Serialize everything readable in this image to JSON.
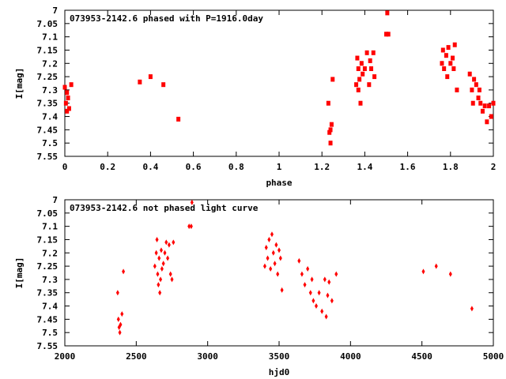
{
  "chart_data": [
    {
      "type": "scatter",
      "title": "073953-2142.6 phased with P=1916.0day",
      "xlabel": "phase",
      "ylabel": "I[mag]",
      "xlim": [
        0,
        2
      ],
      "ylim": [
        7.55,
        7
      ],
      "y_inverted": true,
      "xticks": [
        "0",
        "0.2",
        "0.4",
        "0.6",
        "0.8",
        "1",
        "1.2",
        "1.4",
        "1.6",
        "1.8",
        "2"
      ],
      "yticks": [
        "7",
        "7.05",
        "7.1",
        "7.15",
        "7.2",
        "7.25",
        "7.3",
        "7.35",
        "7.4",
        "7.45",
        "7.5",
        "7.55"
      ],
      "grid": false,
      "marker_color": "#ff0000",
      "series": [
        {
          "x": [
            0.0,
            0.005,
            0.01,
            0.01,
            0.015,
            0.02,
            0.03,
            0.35,
            0.4,
            0.46,
            0.53,
            1.23,
            1.235,
            1.24,
            1.24,
            1.245,
            1.25,
            1.36,
            1.365,
            1.37,
            1.37,
            1.375,
            1.38,
            1.385,
            1.39,
            1.4,
            1.41,
            1.42,
            1.425,
            1.43,
            1.44,
            1.445,
            1.5,
            1.505,
            1.51,
            1.76,
            1.765,
            1.77,
            1.78,
            1.785,
            1.79,
            1.8,
            1.81,
            1.815,
            1.82,
            1.83,
            1.89,
            1.9,
            1.905,
            1.91,
            1.92,
            1.93,
            1.935,
            1.94,
            1.95,
            1.96,
            1.97,
            1.98,
            1.99,
            2.0
          ],
          "y": [
            7.29,
            7.35,
            7.31,
            7.38,
            7.33,
            7.37,
            7.28,
            7.27,
            7.25,
            7.28,
            7.41,
            7.35,
            7.46,
            7.5,
            7.45,
            7.43,
            7.26,
            7.28,
            7.18,
            7.22,
            7.3,
            7.26,
            7.35,
            7.2,
            7.24,
            7.22,
            7.16,
            7.28,
            7.19,
            7.22,
            7.16,
            7.25,
            7.09,
            7.01,
            7.09,
            7.2,
            7.15,
            7.22,
            7.17,
            7.25,
            7.14,
            7.2,
            7.18,
            7.22,
            7.13,
            7.3,
            7.24,
            7.3,
            7.35,
            7.26,
            7.28,
            7.33,
            7.3,
            7.35,
            7.38,
            7.36,
            7.42,
            7.36,
            7.4,
            7.35
          ]
        }
      ]
    },
    {
      "type": "scatter",
      "title": "073953-2142.6 not phased light curve",
      "xlabel": "hjd0",
      "ylabel": "I[mag]",
      "xlim": [
        2000,
        5000
      ],
      "ylim": [
        7.55,
        7
      ],
      "y_inverted": true,
      "xticks": [
        "2000",
        "2500",
        "3000",
        "3500",
        "4000",
        "4500",
        "5000"
      ],
      "yticks": [
        "7",
        "7.05",
        "7.1",
        "7.15",
        "7.2",
        "7.25",
        "7.3",
        "7.35",
        "7.4",
        "7.45",
        "7.5",
        "7.55"
      ],
      "grid": false,
      "marker_color": "#ff0000",
      "series": [
        {
          "x": [
            2370,
            2375,
            2380,
            2385,
            2390,
            2400,
            2410,
            2630,
            2640,
            2645,
            2650,
            2655,
            2660,
            2665,
            2670,
            2675,
            2680,
            2690,
            2700,
            2710,
            2720,
            2730,
            2740,
            2750,
            2760,
            2870,
            2885,
            2890,
            3400,
            3410,
            3420,
            3430,
            3440,
            3450,
            3460,
            3470,
            3480,
            3490,
            3500,
            3510,
            3520,
            3640,
            3660,
            3680,
            3700,
            3720,
            3730,
            3740,
            3760,
            3780,
            3800,
            3820,
            3830,
            3840,
            3850,
            3870,
            3900,
            4510,
            4600,
            4700,
            4850
          ],
          "y": [
            7.35,
            7.45,
            7.48,
            7.5,
            7.47,
            7.43,
            7.27,
            7.25,
            7.2,
            7.15,
            7.28,
            7.32,
            7.22,
            7.35,
            7.3,
            7.19,
            7.26,
            7.24,
            7.2,
            7.16,
            7.22,
            7.17,
            7.28,
            7.3,
            7.16,
            7.1,
            7.1,
            7.01,
            7.25,
            7.18,
            7.22,
            7.15,
            7.26,
            7.13,
            7.2,
            7.24,
            7.17,
            7.28,
            7.19,
            7.22,
            7.34,
            7.23,
            7.28,
            7.32,
            7.26,
            7.35,
            7.3,
            7.38,
            7.4,
            7.35,
            7.42,
            7.3,
            7.44,
            7.36,
            7.31,
            7.38,
            7.28,
            7.27,
            7.25,
            7.28,
            7.41
          ]
        }
      ]
    }
  ]
}
